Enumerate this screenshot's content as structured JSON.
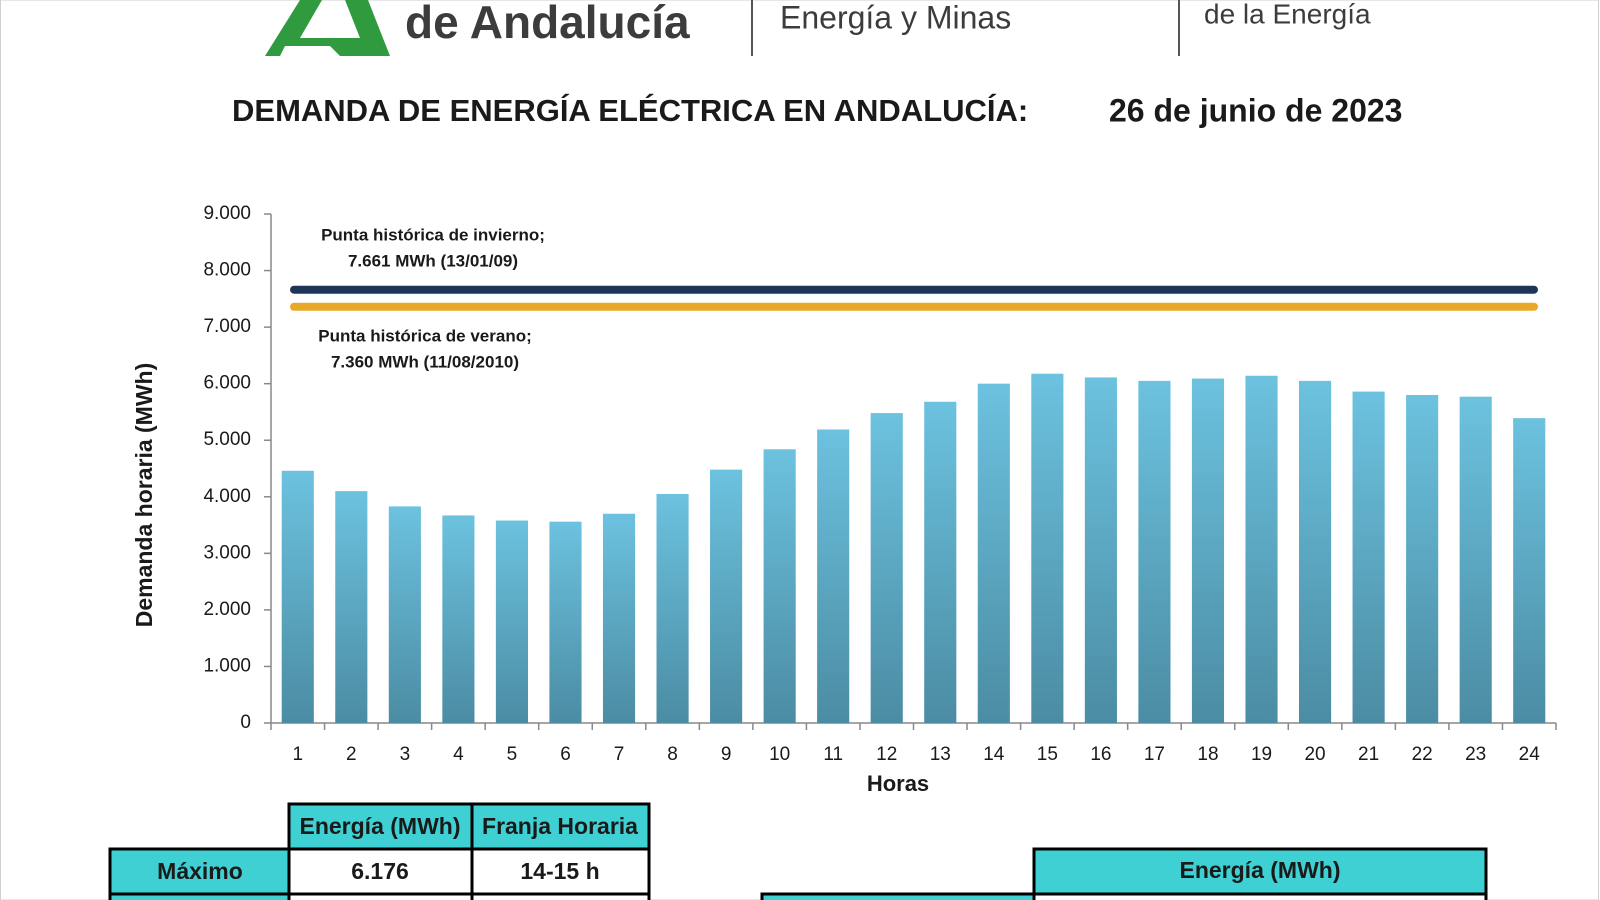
{
  "header": {
    "logo_text": "de Andalucía",
    "department": "Energía y Minas",
    "agency": "de la Energía"
  },
  "chart_data": {
    "type": "bar",
    "title": "DEMANDA DE ENERGÍA ELÉCTRICA EN ANDALUCÍA:",
    "subtitle": "26 de junio de 2023",
    "xlabel": "Horas",
    "ylabel": "Demanda horaria (MWh)",
    "categories": [
      "1",
      "2",
      "3",
      "4",
      "5",
      "6",
      "7",
      "8",
      "9",
      "10",
      "11",
      "12",
      "13",
      "14",
      "15",
      "16",
      "17",
      "18",
      "19",
      "20",
      "21",
      "22",
      "23",
      "24"
    ],
    "values": [
      4460,
      4100,
      3830,
      3670,
      3580,
      3560,
      3700,
      4050,
      4480,
      4840,
      5190,
      5480,
      5680,
      6000,
      6176,
      6110,
      6050,
      6090,
      6140,
      6050,
      5860,
      5800,
      5770,
      5390
    ],
    "color": "#6cc2df",
    "ylim": [
      0,
      9000
    ],
    "yticks": [
      0,
      {
        "value": 1000,
        "label": "1.000"
      },
      {
        "value": 2000,
        "label": "2.000"
      },
      {
        "value": 3000,
        "label": "3.000"
      },
      {
        "value": 4000,
        "label": "4.000"
      },
      {
        "value": 5000,
        "label": "5.000"
      },
      {
        "value": 6000,
        "label": "6.000"
      },
      {
        "value": 7000,
        "label": "7.000"
      },
      {
        "value": 8000,
        "label": "8.000"
      },
      {
        "value": 9000,
        "label": "9.000"
      }
    ],
    "reference_lines": [
      {
        "value": 7661,
        "color": "#1f3557",
        "annotation": [
          "Punta histórica de invierno;",
          "7.661 MWh (13/01/09)"
        ]
      },
      {
        "value": 7360,
        "color": "#e8a92a",
        "annotation": [
          "Punta histórica de verano;",
          "7.360 MWh (11/08/2010)"
        ]
      }
    ]
  },
  "tables": [
    {
      "columns": [
        "Energía (MWh)",
        "Franja Horaria"
      ],
      "rows": [
        [
          "Máximo",
          "6.176",
          "14-15 h"
        ]
      ]
    },
    {
      "columns": [
        "Energía (MWh)"
      ]
    }
  ]
}
